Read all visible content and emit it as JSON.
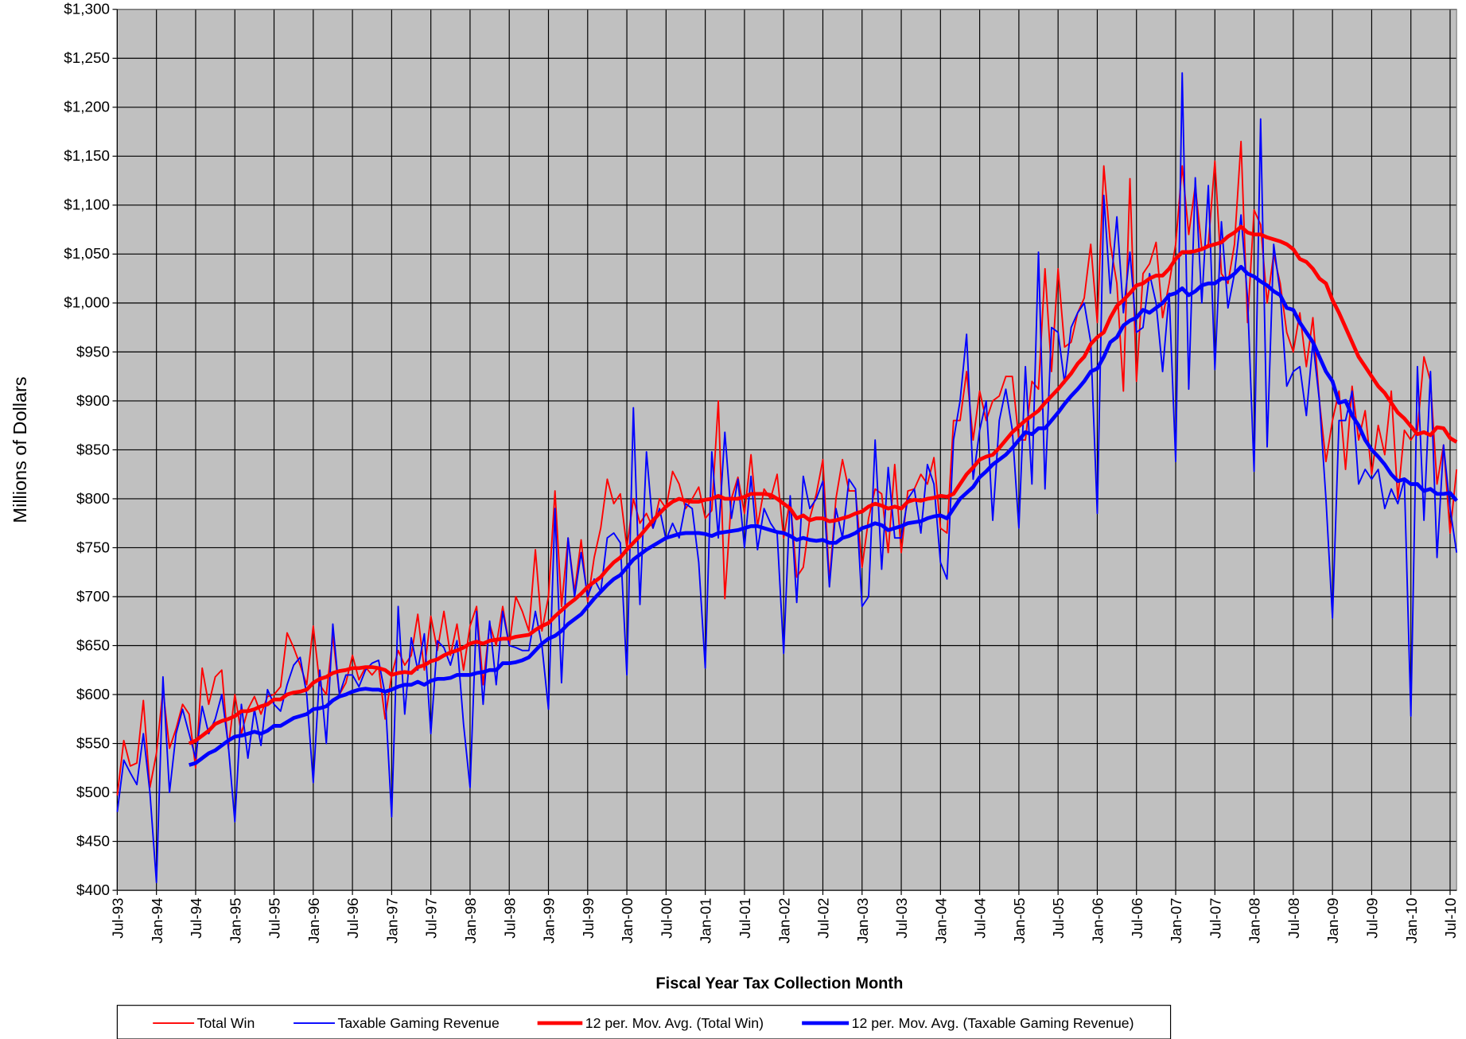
{
  "chart_data": {
    "type": "line",
    "x_label": "Fiscal Year Tax Collection Month",
    "y_label": "Millions of Dollars",
    "grid": true,
    "legend": "bottom",
    "ylim": [
      400,
      1300
    ],
    "yticks": [
      {
        "value": 400,
        "label": "$400"
      },
      {
        "value": 450,
        "label": "$450"
      },
      {
        "value": 500,
        "label": "$500"
      },
      {
        "value": 550,
        "label": "$550"
      },
      {
        "value": 600,
        "label": "$600"
      },
      {
        "value": 650,
        "label": "$650"
      },
      {
        "value": 700,
        "label": "$700"
      },
      {
        "value": 750,
        "label": "$750"
      },
      {
        "value": 800,
        "label": "$800"
      },
      {
        "value": 850,
        "label": "$850"
      },
      {
        "value": 900,
        "label": "$900"
      },
      {
        "value": 950,
        "label": "$950"
      },
      {
        "value": 1000,
        "label": "$1,000"
      },
      {
        "value": 1050,
        "label": "$1,050"
      },
      {
        "value": 1100,
        "label": "$1,100"
      },
      {
        "value": 1150,
        "label": "$1,150"
      },
      {
        "value": 1200,
        "label": "$1,200"
      },
      {
        "value": 1250,
        "label": "$1,250"
      },
      {
        "value": 1300,
        "label": "$1,300"
      }
    ],
    "categories": [
      "Jul-93",
      null,
      null,
      null,
      null,
      null,
      "Jan-94",
      null,
      null,
      null,
      null,
      null,
      "Jul-94",
      null,
      null,
      null,
      null,
      null,
      "Jan-95",
      null,
      null,
      null,
      null,
      null,
      "Jul-95",
      null,
      null,
      null,
      null,
      null,
      "Jan-96",
      null,
      null,
      null,
      null,
      null,
      "Jul-96",
      null,
      null,
      null,
      null,
      null,
      "Jan-97",
      null,
      null,
      null,
      null,
      null,
      "Jul-97",
      null,
      null,
      null,
      null,
      null,
      "Jan-98",
      null,
      null,
      null,
      null,
      null,
      "Jul-98",
      null,
      null,
      null,
      null,
      null,
      "Jan-99",
      null,
      null,
      null,
      null,
      null,
      "Jul-99",
      null,
      null,
      null,
      null,
      null,
      "Jan-00",
      null,
      null,
      null,
      null,
      null,
      "Jul-00",
      null,
      null,
      null,
      null,
      null,
      "Jan-01",
      null,
      null,
      null,
      null,
      null,
      "Jul-01",
      null,
      null,
      null,
      null,
      null,
      "Jan-02",
      null,
      null,
      null,
      null,
      null,
      "Jul-02",
      null,
      null,
      null,
      null,
      null,
      "Jan-03",
      null,
      null,
      null,
      null,
      null,
      "Jul-03",
      null,
      null,
      null,
      null,
      null,
      "Jan-04",
      null,
      null,
      null,
      null,
      null,
      "Jul-04",
      null,
      null,
      null,
      null,
      null,
      "Jan-05",
      null,
      null,
      null,
      null,
      null,
      "Jul-05",
      null,
      null,
      null,
      null,
      null,
      "Jan-06",
      null,
      null,
      null,
      null,
      null,
      "Jul-06",
      null,
      null,
      null,
      null,
      null,
      "Jan-07",
      null,
      null,
      null,
      null,
      null,
      "Jul-07",
      null,
      null,
      null,
      null,
      null,
      "Jan-08",
      null,
      null,
      null,
      null,
      null,
      "Jul-08",
      null,
      null,
      null,
      null,
      null,
      "Jan-09",
      null,
      null,
      null,
      null,
      null,
      "Jul-09",
      null,
      null,
      null,
      null,
      null,
      "Jan-10",
      null,
      null,
      null,
      null,
      null,
      "Jul-10",
      null
    ],
    "series": [
      {
        "name": "Total Win",
        "color": "#ff0000",
        "values": [
          497,
          553,
          527,
          530,
          594,
          505,
          540,
          605,
          545,
          565,
          590,
          580,
          525,
          627,
          590,
          618,
          625,
          545,
          600,
          560,
          585,
          598,
          580,
          598,
          600,
          608,
          663,
          648,
          630,
          610,
          670,
          610,
          600,
          660,
          600,
          612,
          640,
          615,
          628,
          620,
          628,
          575,
          620,
          645,
          630,
          640,
          682,
          625,
          680,
          645,
          685,
          640,
          672,
          625,
          670,
          690,
          610,
          672,
          650,
          690,
          650,
          700,
          685,
          665,
          748,
          665,
          700,
          808,
          690,
          760,
          705,
          758,
          695,
          740,
          770,
          820,
          795,
          805,
          750,
          800,
          775,
          785,
          770,
          800,
          790,
          828,
          815,
          790,
          800,
          812,
          780,
          788,
          900,
          698,
          800,
          822,
          785,
          845,
          772,
          810,
          800,
          825,
          760,
          800,
          720,
          730,
          780,
          805,
          840,
          715,
          800,
          840,
          808,
          808,
          730,
          780,
          810,
          805,
          745,
          835,
          745,
          808,
          810,
          825,
          815,
          842,
          770,
          765,
          880,
          880,
          930,
          860,
          910,
          880,
          900,
          905,
          925,
          925,
          860,
          860,
          920,
          912,
          1035,
          930,
          1035,
          955,
          960,
          990,
          1005,
          1060,
          980,
          1140,
          1060,
          1020,
          910,
          1127,
          920,
          1030,
          1040,
          1062,
          985,
          1020,
          1060,
          1140,
          1070,
          1120,
          1055,
          1060,
          1145,
          1030,
          1020,
          1060,
          1165,
          980,
          1095,
          1080,
          1000,
          1050,
          1020,
          970,
          950,
          990,
          935,
          985,
          900,
          838,
          880,
          910,
          830,
          915,
          860,
          890,
          825,
          875,
          845,
          910,
          800,
          870,
          860,
          870,
          945,
          920,
          815,
          855,
          765,
          830
        ]
      },
      {
        "name": "Taxable Gaming Revenue",
        "color": "#0000ff",
        "values": [
          480,
          533,
          520,
          508,
          560,
          500,
          408,
          618,
          500,
          560,
          585,
          560,
          535,
          588,
          560,
          575,
          600,
          548,
          470,
          590,
          535,
          585,
          548,
          605,
          590,
          583,
          610,
          630,
          638,
          600,
          510,
          625,
          550,
          672,
          600,
          620,
          620,
          608,
          625,
          632,
          635,
          600,
          475,
          690,
          580,
          658,
          625,
          662,
          560,
          655,
          648,
          630,
          655,
          570,
          505,
          685,
          590,
          675,
          610,
          685,
          650,
          648,
          645,
          645,
          685,
          650,
          585,
          790,
          612,
          760,
          700,
          745,
          700,
          718,
          705,
          760,
          765,
          755,
          620,
          893,
          692,
          848,
          770,
          790,
          758,
          775,
          760,
          795,
          790,
          735,
          627,
          848,
          760,
          868,
          780,
          820,
          750,
          823,
          748,
          790,
          775,
          765,
          642,
          803,
          694,
          823,
          790,
          800,
          818,
          710,
          790,
          760,
          820,
          810,
          690,
          700,
          860,
          728,
          832,
          760,
          760,
          800,
          810,
          765,
          835,
          815,
          735,
          718,
          860,
          900,
          968,
          820,
          870,
          900,
          778,
          880,
          912,
          870,
          770,
          935,
          815,
          1052,
          810,
          975,
          970,
          918,
          975,
          990,
          1000,
          960,
          785,
          1110,
          1010,
          1088,
          990,
          1052,
          970,
          975,
          1030,
          1000,
          930,
          1010,
          838,
          1235,
          912,
          1128,
          1000,
          1120,
          932,
          1083,
          995,
          1030,
          1090,
          1005,
          828,
          1188,
          853,
          1060,
          1010,
          915,
          930,
          935,
          885,
          960,
          900,
          800,
          678,
          880,
          880,
          910,
          815,
          830,
          820,
          830,
          790,
          810,
          795,
          820,
          578,
          935,
          778,
          930,
          740,
          855,
          790,
          745
        ]
      },
      {
        "name": "12 per. Mov. Avg. (Total Win)",
        "color": "#ff0000",
        "values": [
          null,
          null,
          null,
          null,
          null,
          null,
          null,
          null,
          null,
          null,
          null,
          550,
          553,
          558,
          563,
          570,
          573,
          575,
          578,
          583,
          583,
          585,
          588,
          590,
          595,
          595,
          600,
          602,
          603,
          605,
          612,
          616,
          618,
          622,
          624,
          625,
          627,
          627,
          628,
          628,
          627,
          625,
          620,
          622,
          623,
          622,
          628,
          630,
          634,
          636,
          640,
          643,
          645,
          648,
          652,
          654,
          652,
          655,
          656,
          657,
          657,
          659,
          660,
          661,
          666,
          670,
          673,
          680,
          686,
          692,
          697,
          703,
          710,
          715,
          720,
          728,
          735,
          740,
          748,
          755,
          762,
          770,
          778,
          785,
          792,
          797,
          800,
          798,
          797,
          797,
          799,
          800,
          803,
          800,
          800,
          800,
          802,
          805,
          805,
          805,
          804,
          800,
          795,
          790,
          780,
          783,
          778,
          780,
          780,
          777,
          778,
          780,
          782,
          785,
          787,
          792,
          795,
          793,
          790,
          792,
          790,
          797,
          799,
          798,
          800,
          801,
          803,
          802,
          805,
          815,
          825,
          832,
          840,
          843,
          845,
          852,
          860,
          868,
          874,
          880,
          885,
          890,
          898,
          905,
          912,
          920,
          928,
          938,
          945,
          958,
          965,
          970,
          985,
          997,
          1003,
          1010,
          1018,
          1020,
          1025,
          1028,
          1028,
          1035,
          1045,
          1052,
          1052,
          1053,
          1055,
          1058,
          1060,
          1062,
          1068,
          1072,
          1078,
          1072,
          1070,
          1070,
          1067,
          1065,
          1063,
          1060,
          1055,
          1045,
          1042,
          1035,
          1025,
          1020,
          1003,
          990,
          975,
          960,
          945,
          935,
          925,
          915,
          908,
          898,
          888,
          882,
          874,
          866,
          868,
          865,
          873,
          872,
          862,
          858
        ]
      },
      {
        "name": "12 per. Mov. Avg. (Taxable Gaming Revenue)",
        "color": "#0000ff",
        "values": [
          null,
          null,
          null,
          null,
          null,
          null,
          null,
          null,
          null,
          null,
          null,
          528,
          530,
          535,
          540,
          543,
          548,
          553,
          557,
          558,
          560,
          562,
          560,
          563,
          568,
          568,
          572,
          576,
          578,
          580,
          585,
          586,
          588,
          594,
          598,
          600,
          603,
          605,
          606,
          605,
          605,
          603,
          605,
          608,
          610,
          610,
          613,
          610,
          614,
          616,
          616,
          617,
          620,
          620,
          620,
          622,
          623,
          625,
          625,
          632,
          632,
          633,
          635,
          638,
          645,
          652,
          657,
          660,
          665,
          672,
          677,
          682,
          690,
          698,
          705,
          712,
          718,
          722,
          730,
          738,
          743,
          748,
          752,
          756,
          760,
          762,
          764,
          765,
          765,
          765,
          764,
          762,
          765,
          766,
          767,
          768,
          770,
          772,
          772,
          770,
          768,
          766,
          765,
          762,
          758,
          760,
          758,
          757,
          758,
          755,
          755,
          760,
          762,
          765,
          770,
          772,
          775,
          773,
          768,
          770,
          772,
          775,
          776,
          777,
          780,
          782,
          783,
          780,
          790,
          800,
          806,
          812,
          822,
          828,
          835,
          840,
          845,
          852,
          860,
          868,
          866,
          872,
          872,
          880,
          888,
          897,
          905,
          912,
          920,
          930,
          933,
          945,
          960,
          965,
          977,
          982,
          985,
          993,
          990,
          995,
          1000,
          1008,
          1010,
          1015,
          1008,
          1012,
          1018,
          1020,
          1020,
          1025,
          1025,
          1030,
          1037,
          1030,
          1027,
          1022,
          1018,
          1012,
          1008,
          995,
          993,
          980,
          970,
          960,
          945,
          930,
          920,
          898,
          900,
          885,
          875,
          860,
          850,
          843,
          835,
          825,
          818,
          820,
          815,
          815,
          808,
          810,
          805,
          805,
          806,
          798
        ]
      }
    ]
  }
}
